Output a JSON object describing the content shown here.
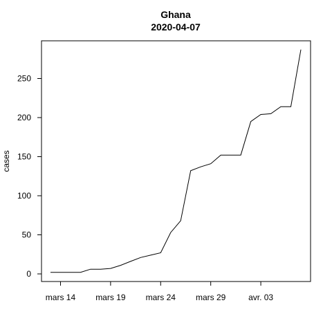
{
  "chart_data": {
    "type": "line",
    "title": "Ghana",
    "subtitle": "2020-04-07",
    "xlabel": "",
    "ylabel": "cases",
    "x": [
      "2020-03-13",
      "2020-03-14",
      "2020-03-15",
      "2020-03-16",
      "2020-03-17",
      "2020-03-18",
      "2020-03-19",
      "2020-03-20",
      "2020-03-21",
      "2020-03-22",
      "2020-03-23",
      "2020-03-24",
      "2020-03-25",
      "2020-03-26",
      "2020-03-27",
      "2020-03-28",
      "2020-03-29",
      "2020-03-30",
      "2020-03-31",
      "2020-04-01",
      "2020-04-02",
      "2020-04-03",
      "2020-04-04",
      "2020-04-05",
      "2020-04-06",
      "2020-04-07"
    ],
    "series": [
      {
        "values": [
          2,
          2,
          2,
          2,
          6,
          6,
          7,
          11,
          16,
          21,
          24,
          27,
          53,
          68,
          132,
          137,
          141,
          152,
          152,
          152,
          195,
          204,
          205,
          214,
          214,
          287
        ]
      }
    ],
    "x_tick_labels": [
      "mars 14",
      "mars 19",
      "mars 24",
      "mars 29",
      "avr. 03"
    ],
    "x_tick_dates": [
      "2020-03-14",
      "2020-03-19",
      "2020-03-24",
      "2020-03-29",
      "2020-04-03"
    ],
    "y_ticks": [
      0,
      50,
      100,
      150,
      200,
      250
    ],
    "xlim": [
      "2020-03-13",
      "2020-04-07"
    ],
    "ylim": [
      0,
      287
    ],
    "grid": false,
    "legend": "none",
    "line_color": "#000000"
  }
}
